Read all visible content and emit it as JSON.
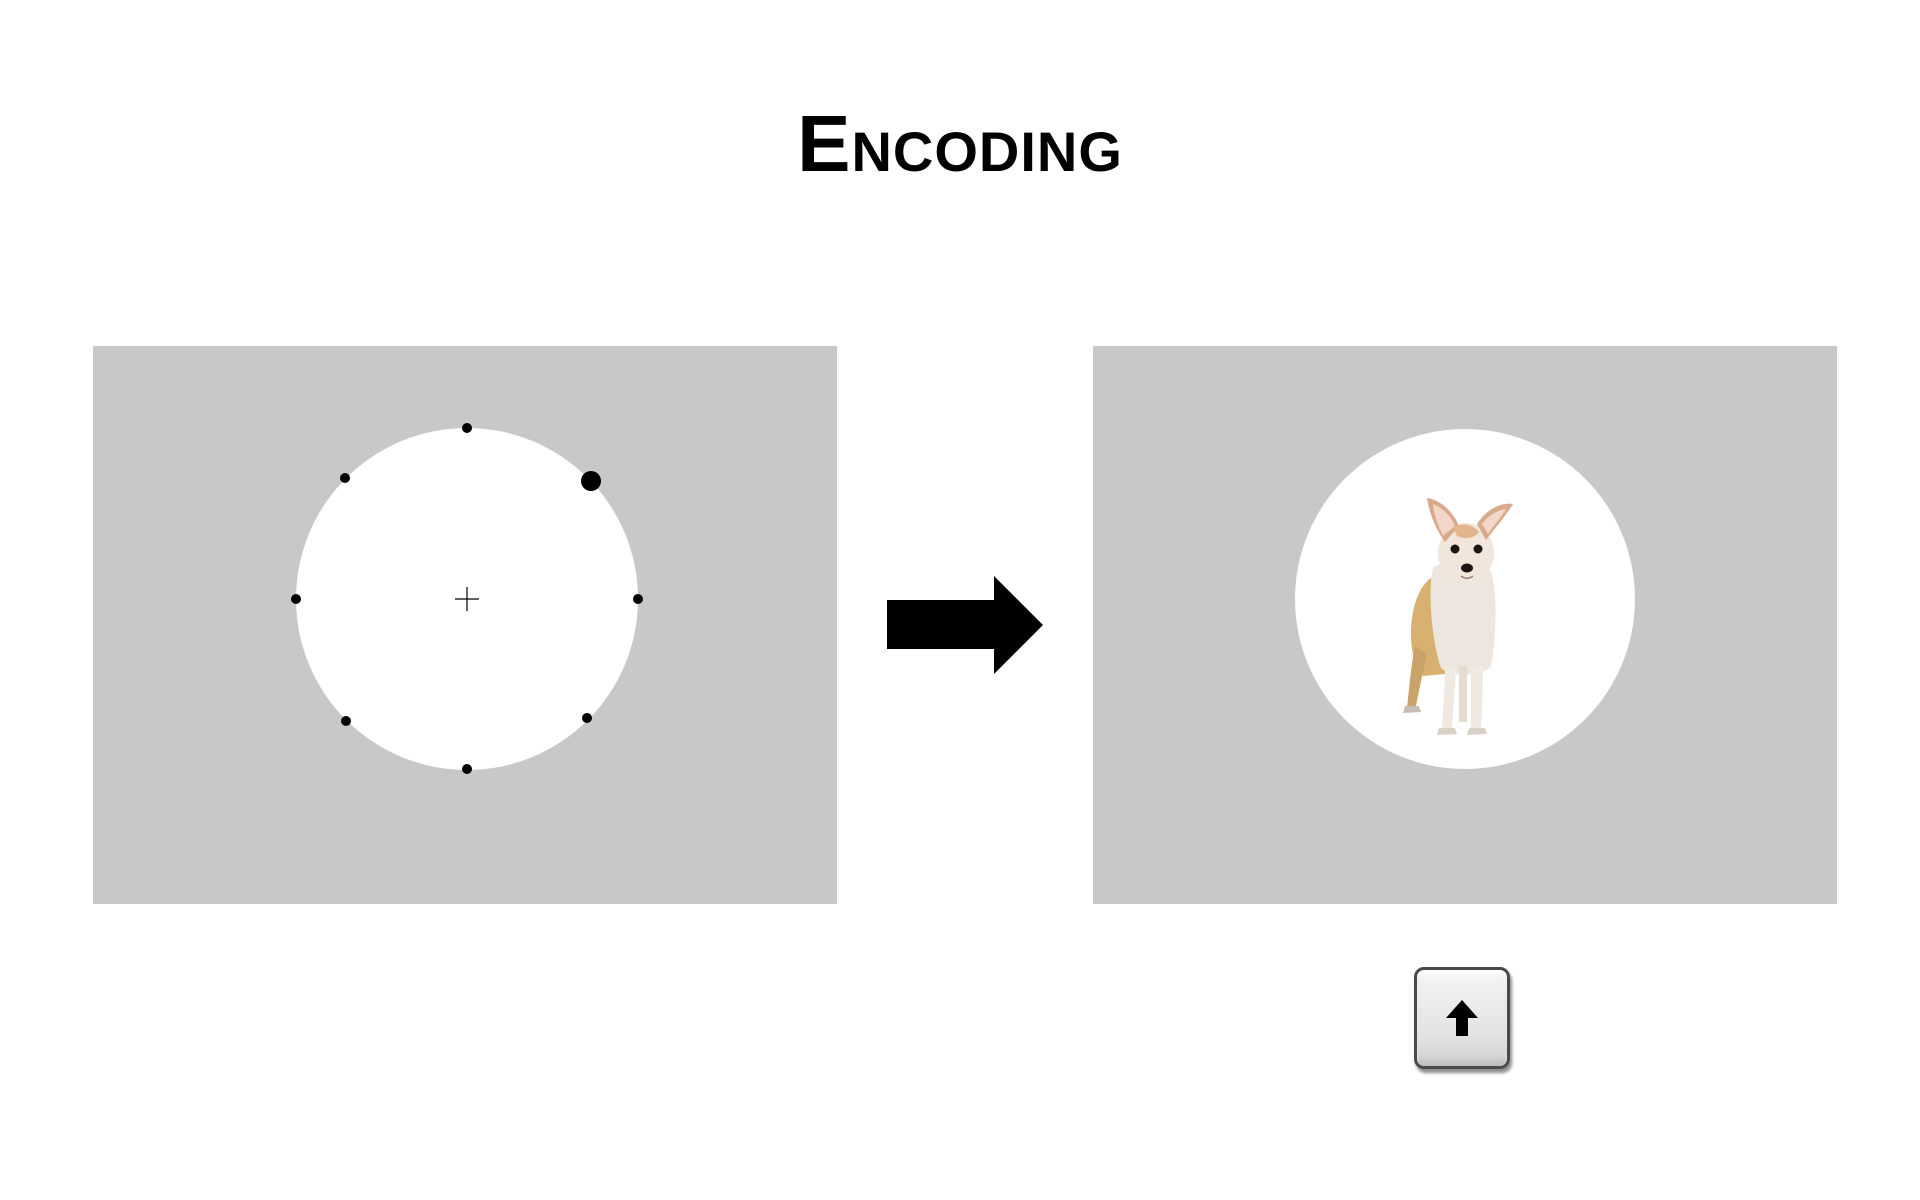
{
  "title": "Encoding",
  "encoding_display": {
    "locations": 8,
    "highlighted_location": "upper-right",
    "fixation": "cross"
  },
  "stimulus": {
    "icon": "chihuahua-dog-image",
    "background_color": "#c8c8c8",
    "aperture_color": "#ffffff"
  },
  "response_key": {
    "icon": "arrow-up-icon"
  },
  "colors": {
    "panel": "#c8c8c8",
    "marker": "#000000"
  }
}
